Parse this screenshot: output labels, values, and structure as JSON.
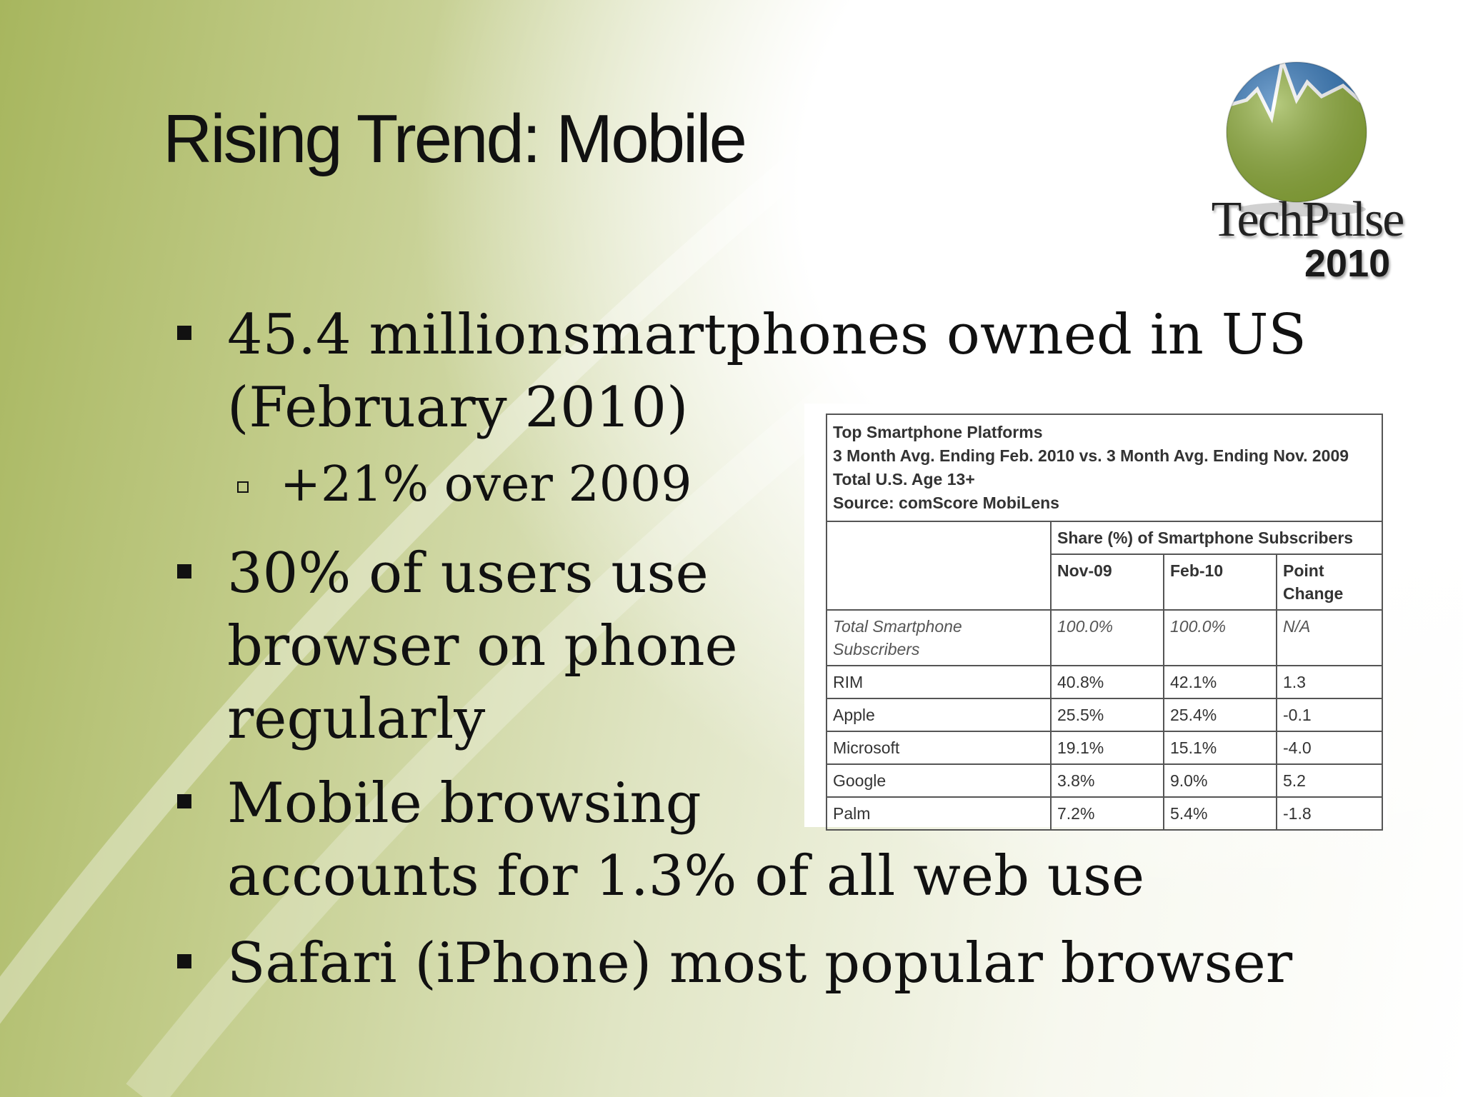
{
  "slide": {
    "title": "Rising Trend: Mobile",
    "logo": {
      "name": "TechPulse",
      "year": "2010"
    },
    "colors": {
      "background_green": "#a7b65e",
      "logo_blue": "#2f74b8",
      "logo_green": "#8fae3a",
      "text": "#111111"
    }
  },
  "bullets": [
    {
      "lines": [
        "45.4 millionsmartphones owned in US",
        "(February 2010)"
      ]
    },
    {
      "lines": [
        "30% of users use",
        "browser on phone",
        "regularly"
      ]
    },
    {
      "lines": [
        "Mobile browsing",
        "accounts for 1.3% of all web use"
      ]
    },
    {
      "lines": [
        "Safari (iPhone) most popular browser"
      ]
    }
  ],
  "sub_bullet": "+21% over 2009",
  "table": {
    "caption": [
      "Top Smartphone Platforms",
      "3 Month Avg. Ending Feb. 2010 vs. 3 Month Avg. Ending Nov. 2009",
      "Total U.S. Age 13+",
      "Source: comScore MobiLens"
    ],
    "group_header": "Share (%) of Smartphone Subscribers",
    "columns": [
      "Nov-09",
      "Feb-10",
      "Point Change"
    ],
    "total_row": {
      "label": "Total Smartphone Subscribers",
      "values": [
        "100.0%",
        "100.0%",
        "N/A"
      ]
    },
    "rows": [
      {
        "platform": "RIM",
        "values": [
          "40.8%",
          "42.1%",
          "1.3"
        ]
      },
      {
        "platform": "Apple",
        "values": [
          "25.5%",
          "25.4%",
          "-0.1"
        ]
      },
      {
        "platform": "Microsoft",
        "values": [
          "19.1%",
          "15.1%",
          "-4.0"
        ]
      },
      {
        "platform": "Google",
        "values": [
          "3.8%",
          "9.0%",
          "5.2"
        ]
      },
      {
        "platform": "Palm",
        "values": [
          "7.2%",
          "5.4%",
          "-1.8"
        ]
      }
    ]
  }
}
